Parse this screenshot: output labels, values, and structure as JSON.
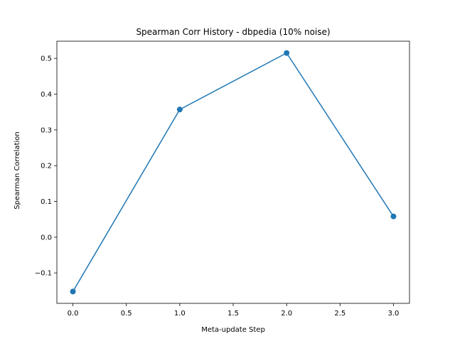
{
  "chart_data": {
    "type": "line",
    "title": "Spearman Corr History - dbpedia (10% noise)",
    "xlabel": "Meta-update Step",
    "ylabel": "Spearman Correlation",
    "x": [
      0.0,
      1.0,
      2.0,
      3.0
    ],
    "series": [
      {
        "values": [
          -0.152,
          0.357,
          0.515,
          0.058
        ],
        "color": "#1f77b4",
        "marker": "circle"
      }
    ],
    "xlim": [
      -0.15,
      3.15
    ],
    "ylim": [
      -0.185,
      0.548
    ],
    "xticks": [
      0.0,
      0.5,
      1.0,
      1.5,
      2.0,
      2.5,
      3.0
    ],
    "xtick_labels": [
      "0.0",
      "0.5",
      "1.0",
      "1.5",
      "2.0",
      "2.5",
      "3.0"
    ],
    "yticks": [
      -0.1,
      0.0,
      0.1,
      0.2,
      0.3,
      0.4,
      0.5
    ],
    "ytick_labels": [
      "−0.1",
      "0.0",
      "0.1",
      "0.2",
      "0.3",
      "0.4",
      "0.5"
    ],
    "grid": false,
    "legend": "none"
  }
}
